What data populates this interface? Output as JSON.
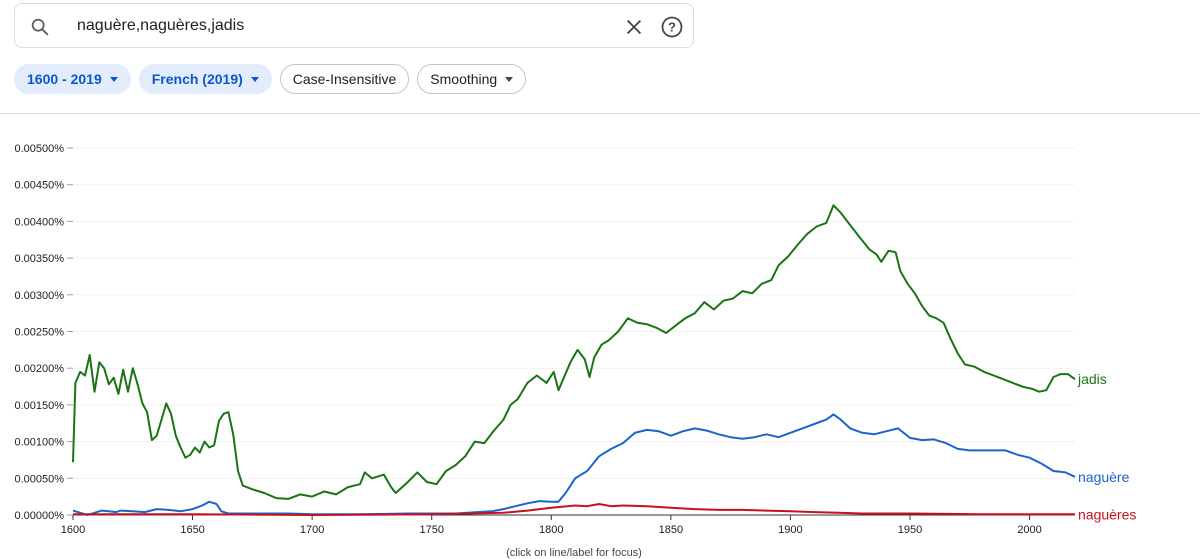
{
  "search": {
    "query": "naguère,naguères,jadis",
    "icon": "search-icon",
    "clear_icon": "close-icon",
    "help_icon": "help-icon"
  },
  "filters": {
    "year_range": "1600 - 2019",
    "corpus": "French (2019)",
    "case": "Case-Insensitive",
    "smoothing": "Smoothing"
  },
  "chart_data": {
    "type": "line",
    "title": "",
    "xlabel": "",
    "ylabel": "",
    "xlim": [
      1600,
      2019
    ],
    "ylim": [
      0,
      0.005
    ],
    "x_ticks": [
      1600,
      1650,
      1700,
      1750,
      1800,
      1850,
      1900,
      1950,
      2000
    ],
    "x_tick_labels": [
      "1600",
      "1650",
      "1700",
      "1750",
      "1800",
      "1850",
      "1900",
      "1950",
      "2000"
    ],
    "y_ticks": [
      0,
      0.0005,
      0.001,
      0.0015,
      0.002,
      0.0025,
      0.003,
      0.0035,
      0.004,
      0.0045,
      0.005
    ],
    "y_tick_labels": [
      "0.00000%",
      "0.00050%",
      "0.00100%",
      "0.00150%",
      "0.00200%",
      "0.00250%",
      "0.00300%",
      "0.00350%",
      "0.00400%",
      "0.00450%",
      "0.00500%"
    ],
    "grid": false,
    "legend": "inline labels at right end of each line",
    "hint": "(click on line/label for focus)",
    "series": [
      {
        "name": "jadis",
        "color": "#1a7314",
        "points": [
          [
            1600,
            0.00072
          ],
          [
            1601,
            0.0018
          ],
          [
            1603,
            0.00195
          ],
          [
            1605,
            0.0019
          ],
          [
            1607,
            0.00218
          ],
          [
            1609,
            0.00168
          ],
          [
            1611,
            0.00208
          ],
          [
            1613,
            0.002
          ],
          [
            1615,
            0.00178
          ],
          [
            1617,
            0.00187
          ],
          [
            1619,
            0.00165
          ],
          [
            1621,
            0.00198
          ],
          [
            1623,
            0.00168
          ],
          [
            1625,
            0.002
          ],
          [
            1627,
            0.00178
          ],
          [
            1629,
            0.00152
          ],
          [
            1631,
            0.0014
          ],
          [
            1633,
            0.00102
          ],
          [
            1635,
            0.00108
          ],
          [
            1637,
            0.0013
          ],
          [
            1639,
            0.00152
          ],
          [
            1641,
            0.00138
          ],
          [
            1643,
            0.00108
          ],
          [
            1645,
            0.00092
          ],
          [
            1647,
            0.00078
          ],
          [
            1649,
            0.00082
          ],
          [
            1651,
            0.00092
          ],
          [
            1653,
            0.00085
          ],
          [
            1655,
            0.001
          ],
          [
            1657,
            0.00092
          ],
          [
            1659,
            0.00095
          ],
          [
            1661,
            0.00128
          ],
          [
            1663,
            0.00138
          ],
          [
            1665,
            0.0014
          ],
          [
            1667,
            0.0011
          ],
          [
            1669,
            0.0006
          ],
          [
            1671,
            0.0004
          ],
          [
            1675,
            0.00035
          ],
          [
            1680,
            0.0003
          ],
          [
            1685,
            0.00023
          ],
          [
            1690,
            0.00022
          ],
          [
            1695,
            0.00028
          ],
          [
            1700,
            0.00025
          ],
          [
            1705,
            0.00032
          ],
          [
            1710,
            0.00028
          ],
          [
            1715,
            0.00038
          ],
          [
            1720,
            0.00042
          ],
          [
            1722,
            0.00058
          ],
          [
            1725,
            0.0005
          ],
          [
            1730,
            0.00055
          ],
          [
            1733,
            0.00038
          ],
          [
            1735,
            0.0003
          ],
          [
            1740,
            0.00045
          ],
          [
            1744,
            0.00058
          ],
          [
            1748,
            0.00045
          ],
          [
            1752,
            0.00042
          ],
          [
            1756,
            0.0006
          ],
          [
            1760,
            0.00068
          ],
          [
            1764,
            0.0008
          ],
          [
            1768,
            0.001
          ],
          [
            1772,
            0.00098
          ],
          [
            1776,
            0.00115
          ],
          [
            1780,
            0.0013
          ],
          [
            1783,
            0.0015
          ],
          [
            1786,
            0.00158
          ],
          [
            1790,
            0.0018
          ],
          [
            1794,
            0.0019
          ],
          [
            1798,
            0.0018
          ],
          [
            1801,
            0.00195
          ],
          [
            1803,
            0.0017
          ],
          [
            1805,
            0.00185
          ],
          [
            1808,
            0.00208
          ],
          [
            1811,
            0.00225
          ],
          [
            1814,
            0.00212
          ],
          [
            1816,
            0.00188
          ],
          [
            1818,
            0.00215
          ],
          [
            1821,
            0.00232
          ],
          [
            1824,
            0.00238
          ],
          [
            1828,
            0.0025
          ],
          [
            1832,
            0.00268
          ],
          [
            1836,
            0.00262
          ],
          [
            1840,
            0.0026
          ],
          [
            1844,
            0.00255
          ],
          [
            1848,
            0.00248
          ],
          [
            1852,
            0.00258
          ],
          [
            1856,
            0.00268
          ],
          [
            1860,
            0.00275
          ],
          [
            1864,
            0.0029
          ],
          [
            1868,
            0.0028
          ],
          [
            1872,
            0.00292
          ],
          [
            1876,
            0.00295
          ],
          [
            1880,
            0.00305
          ],
          [
            1884,
            0.00302
          ],
          [
            1888,
            0.00315
          ],
          [
            1892,
            0.0032
          ],
          [
            1895,
            0.0034
          ],
          [
            1899,
            0.00352
          ],
          [
            1903,
            0.00368
          ],
          [
            1907,
            0.00383
          ],
          [
            1911,
            0.00393
          ],
          [
            1915,
            0.00398
          ],
          [
            1918,
            0.00422
          ],
          [
            1921,
            0.00412
          ],
          [
            1925,
            0.00395
          ],
          [
            1929,
            0.00378
          ],
          [
            1933,
            0.00362
          ],
          [
            1936,
            0.00355
          ],
          [
            1938,
            0.00345
          ],
          [
            1941,
            0.0036
          ],
          [
            1944,
            0.00358
          ],
          [
            1946,
            0.00332
          ],
          [
            1949,
            0.00315
          ],
          [
            1952,
            0.00302
          ],
          [
            1955,
            0.00285
          ],
          [
            1958,
            0.00272
          ],
          [
            1961,
            0.00268
          ],
          [
            1964,
            0.00262
          ],
          [
            1967,
            0.0024
          ],
          [
            1970,
            0.0022
          ],
          [
            1973,
            0.00205
          ],
          [
            1977,
            0.00202
          ],
          [
            1981,
            0.00195
          ],
          [
            1985,
            0.0019
          ],
          [
            1989,
            0.00185
          ],
          [
            1993,
            0.0018
          ],
          [
            1997,
            0.00175
          ],
          [
            2001,
            0.00172
          ],
          [
            2004,
            0.00168
          ],
          [
            2007,
            0.0017
          ],
          [
            2010,
            0.00188
          ],
          [
            2013,
            0.00192
          ],
          [
            2016,
            0.00192
          ],
          [
            2019,
            0.00185
          ]
        ]
      },
      {
        "name": "naguère",
        "color": "#1c63cc",
        "points": [
          [
            1600,
            6e-05
          ],
          [
            1603,
            3e-05
          ],
          [
            1606,
            0.0
          ],
          [
            1609,
            3e-05
          ],
          [
            1612,
            6e-05
          ],
          [
            1615,
            5e-05
          ],
          [
            1618,
            4e-05
          ],
          [
            1620,
            6e-05
          ],
          [
            1625,
            5e-05
          ],
          [
            1630,
            4e-05
          ],
          [
            1635,
            8e-05
          ],
          [
            1640,
            7e-05
          ],
          [
            1645,
            5e-05
          ],
          [
            1650,
            8e-05
          ],
          [
            1654,
            0.00013
          ],
          [
            1657,
            0.00018
          ],
          [
            1660,
            0.00015
          ],
          [
            1662,
            5e-05
          ],
          [
            1665,
            2e-05
          ],
          [
            1670,
            2e-05
          ],
          [
            1680,
            2e-05
          ],
          [
            1690,
            2e-05
          ],
          [
            1700,
            1e-05
          ],
          [
            1720,
            1e-05
          ],
          [
            1740,
            2e-05
          ],
          [
            1760,
            2e-05
          ],
          [
            1775,
            5e-05
          ],
          [
            1780,
            8e-05
          ],
          [
            1785,
            0.00012
          ],
          [
            1790,
            0.00016
          ],
          [
            1795,
            0.00019
          ],
          [
            1800,
            0.00018
          ],
          [
            1803,
            0.00018
          ],
          [
            1806,
            0.0003
          ],
          [
            1810,
            0.0005
          ],
          [
            1815,
            0.0006
          ],
          [
            1820,
            0.0008
          ],
          [
            1825,
            0.0009
          ],
          [
            1830,
            0.00098
          ],
          [
            1835,
            0.00112
          ],
          [
            1840,
            0.00116
          ],
          [
            1845,
            0.00114
          ],
          [
            1850,
            0.00108
          ],
          [
            1855,
            0.00114
          ],
          [
            1860,
            0.00118
          ],
          [
            1865,
            0.00115
          ],
          [
            1870,
            0.0011
          ],
          [
            1875,
            0.00106
          ],
          [
            1880,
            0.00104
          ],
          [
            1885,
            0.00106
          ],
          [
            1890,
            0.0011
          ],
          [
            1895,
            0.00106
          ],
          [
            1900,
            0.00112
          ],
          [
            1905,
            0.00118
          ],
          [
            1910,
            0.00124
          ],
          [
            1915,
            0.0013
          ],
          [
            1918,
            0.00137
          ],
          [
            1921,
            0.0013
          ],
          [
            1925,
            0.00118
          ],
          [
            1930,
            0.00112
          ],
          [
            1935,
            0.0011
          ],
          [
            1940,
            0.00114
          ],
          [
            1945,
            0.00118
          ],
          [
            1950,
            0.00105
          ],
          [
            1955,
            0.00102
          ],
          [
            1960,
            0.00103
          ],
          [
            1965,
            0.00098
          ],
          [
            1970,
            0.0009
          ],
          [
            1975,
            0.00088
          ],
          [
            1980,
            0.00088
          ],
          [
            1985,
            0.00088
          ],
          [
            1990,
            0.00088
          ],
          [
            1995,
            0.00082
          ],
          [
            2000,
            0.00078
          ],
          [
            2005,
            0.0007
          ],
          [
            2010,
            0.0006
          ],
          [
            2015,
            0.00058
          ],
          [
            2019,
            0.00052
          ]
        ]
      },
      {
        "name": "naguères",
        "color": "#c5121f",
        "points": [
          [
            1600,
            1e-05
          ],
          [
            1650,
            1e-05
          ],
          [
            1700,
            0.0
          ],
          [
            1750,
            1e-05
          ],
          [
            1780,
            3e-05
          ],
          [
            1790,
            6e-05
          ],
          [
            1800,
            0.0001
          ],
          [
            1810,
            0.00013
          ],
          [
            1815,
            0.00012
          ],
          [
            1820,
            0.00015
          ],
          [
            1825,
            0.00012
          ],
          [
            1830,
            0.00013
          ],
          [
            1840,
            0.00012
          ],
          [
            1850,
            0.0001
          ],
          [
            1860,
            8e-05
          ],
          [
            1870,
            7e-05
          ],
          [
            1880,
            7e-05
          ],
          [
            1890,
            6e-05
          ],
          [
            1900,
            5e-05
          ],
          [
            1910,
            4e-05
          ],
          [
            1920,
            3e-05
          ],
          [
            1930,
            2e-05
          ],
          [
            1950,
            2e-05
          ],
          [
            1980,
            1e-05
          ],
          [
            2000,
            1e-05
          ],
          [
            2019,
            1e-05
          ]
        ]
      }
    ]
  }
}
